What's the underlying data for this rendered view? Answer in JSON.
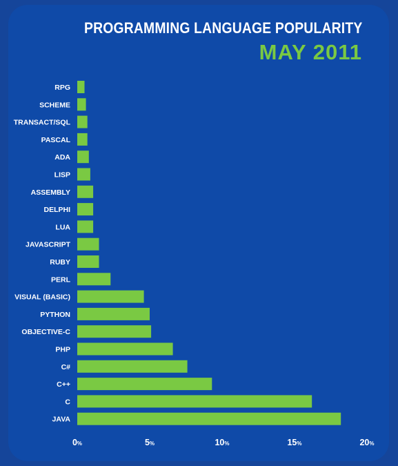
{
  "header": {
    "title": "PROGRAMMING LANGUAGE POPULARITY",
    "subtitle": "MAY 2011"
  },
  "colors": {
    "background": "#15459a",
    "panel": "#0f4aa8",
    "bar": "#7ac943",
    "text": "#ffffff",
    "subtitle": "#7ac943"
  },
  "chart_data": {
    "type": "bar",
    "orientation": "horizontal",
    "title": "PROGRAMMING LANGUAGE POPULARITY",
    "subtitle": "MAY 2011",
    "xlabel": "",
    "ylabel": "",
    "unit": "%",
    "xlim": [
      0,
      20
    ],
    "xticks": [
      0,
      5,
      10,
      15,
      20
    ],
    "grid": false,
    "categories": [
      "RPG",
      "SCHEME",
      "TRANSACT/SQL",
      "PASCAL",
      "ADA",
      "LISP",
      "ASSEMBLY",
      "DELPHI",
      "LUA",
      "JAVASCRIPT",
      "RUBY",
      "PERL",
      "VISUAL (BASIC)",
      "PYTHON",
      "OBJECTIVE-C",
      "PHP",
      "C#",
      "C++",
      "C",
      "JAVA"
    ],
    "values": [
      0.5,
      0.6,
      0.7,
      0.7,
      0.8,
      0.9,
      1.1,
      1.1,
      1.1,
      1.5,
      1.5,
      2.3,
      4.6,
      5.0,
      5.1,
      6.6,
      7.6,
      9.3,
      16.2,
      18.2
    ]
  }
}
